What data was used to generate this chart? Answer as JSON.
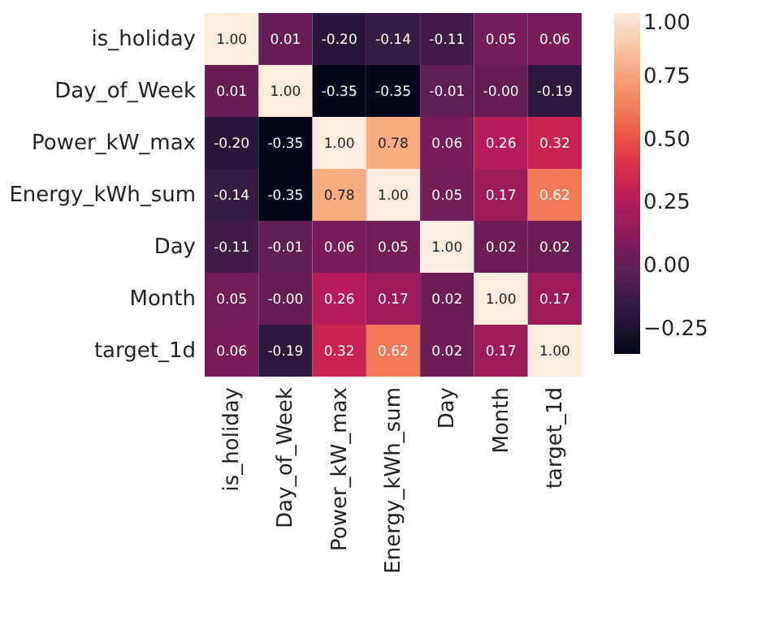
{
  "chart_data": {
    "type": "heatmap",
    "categories": [
      "is_holiday",
      "Day_of_Week",
      "Power_kW_max",
      "Energy_kWh_sum",
      "Day",
      "Month",
      "target_1d"
    ],
    "y_categories": [
      "is_holiday",
      "Day_of_Week",
      "Power_kW_max",
      "Energy_kWh_sum",
      "Day",
      "Month",
      "target_1d"
    ],
    "cells": [
      [
        1.0,
        0.01,
        -0.2,
        -0.14,
        -0.11,
        0.05,
        0.06
      ],
      [
        0.01,
        1.0,
        -0.35,
        -0.35,
        -0.01,
        0.0,
        -0.19
      ],
      [
        -0.2,
        -0.35,
        1.0,
        0.78,
        0.06,
        0.26,
        0.32
      ],
      [
        -0.14,
        -0.35,
        0.78,
        1.0,
        0.05,
        0.17,
        0.62
      ],
      [
        -0.11,
        -0.01,
        0.06,
        0.05,
        1.0,
        0.02,
        0.02
      ],
      [
        0.05,
        0.0,
        0.26,
        0.17,
        0.02,
        1.0,
        0.17
      ],
      [
        0.06,
        -0.19,
        0.32,
        0.62,
        0.02,
        0.17,
        1.0
      ]
    ],
    "cell_labels": [
      [
        "1.00",
        "0.01",
        "-0.20",
        "-0.14",
        "-0.11",
        "0.05",
        "0.06"
      ],
      [
        "0.01",
        "1.00",
        "-0.35",
        "-0.35",
        "-0.01",
        "-0.00",
        "-0.19"
      ],
      [
        "-0.20",
        "-0.35",
        "1.00",
        "0.78",
        "0.06",
        "0.26",
        "0.32"
      ],
      [
        "-0.14",
        "-0.35",
        "0.78",
        "1.00",
        "0.05",
        "0.17",
        "0.62"
      ],
      [
        "-0.11",
        "-0.01",
        "0.06",
        "0.05",
        "1.00",
        "0.02",
        "0.02"
      ],
      [
        "0.05",
        "-0.00",
        "0.26",
        "0.17",
        "0.02",
        "1.00",
        "0.17"
      ],
      [
        "0.06",
        "-0.19",
        "0.32",
        "0.62",
        "0.02",
        "0.17",
        "1.00"
      ]
    ],
    "clim": [
      -0.35,
      1.0
    ],
    "cticks": [
      {
        "value": -0.25,
        "label": "−0.25"
      },
      {
        "value": 0,
        "label": "0.00"
      },
      {
        "value": 0.25,
        "label": "0.25"
      },
      {
        "value": 0.5,
        "label": "0.50"
      },
      {
        "value": 0.75,
        "label": "0.75"
      },
      {
        "value": 1.0,
        "label": "1.00"
      }
    ]
  }
}
